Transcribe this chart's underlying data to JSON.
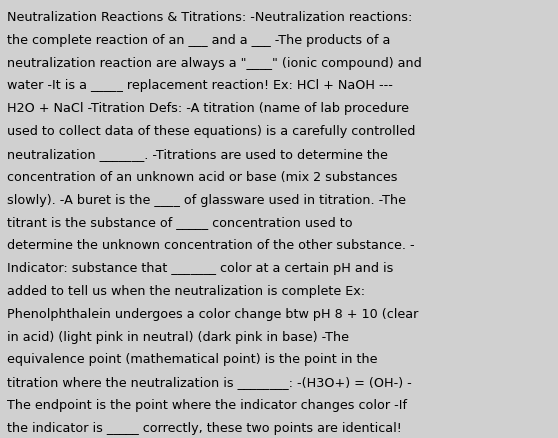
{
  "background_color": "#d0d0d0",
  "text_color": "#000000",
  "font_size": 9.2,
  "font_family": "DejaVu Sans",
  "figsize": [
    5.58,
    4.39
  ],
  "dpi": 100,
  "lines": [
    "Neutralization Reactions & Titrations: -Neutralization reactions:",
    "the complete reaction of an ___ and a ___ -The products of a",
    "neutralization reaction are always a \"____\" (ionic compound) and",
    "water -It is a _____ replacement reaction! Ex: HCl + NaOH ---",
    "H2O + NaCl -Titration Defs: -A titration (name of lab procedure",
    "used to collect data of these equations) is a carefully controlled",
    "neutralization _______. -Titrations are used to determine the",
    "concentration of an unknown acid or base (mix 2 substances",
    "slowly). -A buret is the ____ of glassware used in titration. -The",
    "titrant is the substance of _____ concentration used to",
    "determine the unknown concentration of the other substance. -",
    "Indicator: substance that _______ color at a certain pH and is",
    "added to tell us when the neutralization is complete Ex:",
    "Phenolphthalein undergoes a color change btw pH 8 + 10 (clear",
    "in acid) (light pink in neutral) (dark pink in base) -The",
    "equivalence point (mathematical point) is the point in the",
    "titration where the neutralization is ________: -(H3O+) = (OH-) -",
    "The endpoint is the point where the indicator changes color -If",
    "the indicator is _____ correctly, these two points are identical!"
  ]
}
